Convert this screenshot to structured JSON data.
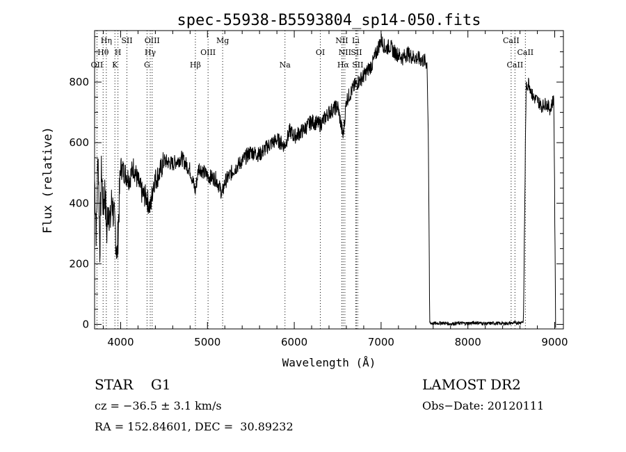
{
  "chart_data": {
    "type": "line",
    "title": "spec-55938-B5593804_sp14-050.fits",
    "xlabel": "Wavelength (Å)",
    "ylabel": "Flux (relative)",
    "xlim": [
      3700,
      9100
    ],
    "ylim": [
      -15,
      970
    ],
    "xticks": [
      4000,
      5000,
      6000,
      7000,
      8000,
      9000
    ],
    "yticks": [
      0,
      200,
      400,
      600,
      800
    ],
    "x_minor_step": 200,
    "y_minor_step": 50,
    "grid": false,
    "series": [
      {
        "x": [
          3700,
          3720,
          3740,
          3760,
          3780,
          3800,
          3820,
          3840,
          3860,
          3880,
          3900,
          3920,
          3940,
          3960,
          3980,
          4000,
          4050,
          4100,
          4150,
          4200,
          4250,
          4300,
          4340,
          4380,
          4450,
          4500,
          4600,
          4700,
          4800,
          4860,
          4900,
          5000,
          5100,
          5170,
          5200,
          5300,
          5400,
          5500,
          5600,
          5700,
          5800,
          5890,
          5950,
          6000,
          6100,
          6200,
          6300,
          6400,
          6500,
          6563,
          6600,
          6700,
          6800,
          6900,
          6950,
          7000,
          7050,
          7100,
          7150,
          7200,
          7250,
          7300,
          7350,
          7400,
          7450,
          7500,
          7530,
          7545,
          7560,
          7600,
          7700,
          7800,
          7900,
          8000,
          8100,
          8200,
          8300,
          8400,
          8500,
          8600,
          8640,
          8655,
          8670,
          8700,
          8750,
          8800,
          8850,
          8900,
          8950,
          8990,
          9005,
          9010
        ],
        "y": [
          480,
          300,
          580,
          250,
          520,
          380,
          450,
          300,
          400,
          330,
          420,
          350,
          310,
          220,
          380,
          520,
          500,
          480,
          520,
          470,
          430,
          420,
          380,
          470,
          500,
          540,
          530,
          550,
          510,
          440,
          520,
          490,
          480,
          430,
          470,
          510,
          540,
          570,
          560,
          590,
          610,
          590,
          640,
          620,
          640,
          670,
          660,
          700,
          720,
          620,
          740,
          790,
          820,
          860,
          900,
          940,
          910,
          920,
          900,
          890,
          880,
          895,
          885,
          880,
          875,
          870,
          860,
          600,
          5,
          3,
          5,
          2,
          4,
          3,
          6,
          2,
          4,
          3,
          4,
          6,
          10,
          400,
          780,
          800,
          750,
          740,
          720,
          730,
          710,
          750,
          200,
          5
        ]
      }
    ],
    "line_markers": [
      {
        "wave": 3727,
        "label": "OII",
        "row": 3
      },
      {
        "wave": 3798,
        "label": "Hθ",
        "row": 2
      },
      {
        "wave": 3835,
        "label": "Hη",
        "row": 1
      },
      {
        "wave": 3934,
        "label": "K",
        "row": 3
      },
      {
        "wave": 3969,
        "label": "H",
        "row": 2
      },
      {
        "wave": 4072,
        "label": "SII",
        "row": 1
      },
      {
        "wave": 4304,
        "label": "G",
        "row": 3
      },
      {
        "wave": 4341,
        "label": "Hγ",
        "row": 2
      },
      {
        "wave": 4363,
        "label": "OIII",
        "row": 1
      },
      {
        "wave": 4861,
        "label": "Hβ",
        "row": 3
      },
      {
        "wave": 5007,
        "label": "OIII",
        "row": 2
      },
      {
        "wave": 5175,
        "label": "Mg",
        "row": 1
      },
      {
        "wave": 5893,
        "label": "Na",
        "row": 3
      },
      {
        "wave": 6300,
        "label": "OI",
        "row": 2
      },
      {
        "wave": 6548,
        "label": "NII",
        "row": 1
      },
      {
        "wave": 6563,
        "label": "Hα",
        "row": 3
      },
      {
        "wave": 6583,
        "label": "NII",
        "row": 2
      },
      {
        "wave": 6708,
        "label": "Li",
        "row": 1
      },
      {
        "wave": 6716,
        "label": "SII",
        "row": 2
      },
      {
        "wave": 6731,
        "label": "SII",
        "row": 3
      },
      {
        "wave": 8498,
        "label": "CaII",
        "row": 1
      },
      {
        "wave": 8542,
        "label": "CaII",
        "row": 3
      },
      {
        "wave": 8662,
        "label": "CaII",
        "row": 2
      }
    ]
  },
  "info": {
    "classification": "STAR    G1",
    "survey": "LAMOST DR2",
    "redshift": "cz = −36.5 ± 3.1 km/s",
    "obs_date": "Obs−Date: 20120111",
    "coords": "RA = 152.84601, DEC =  30.89232"
  }
}
